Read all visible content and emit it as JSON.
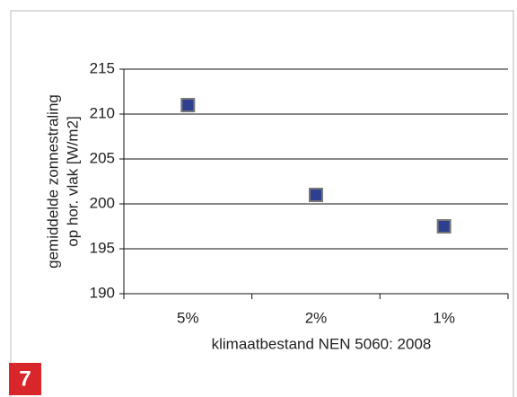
{
  "chart_data": {
    "type": "scatter",
    "y_label": [
      "gemiddelde zonnestraling",
      "op hor. vlak [W/m2]"
    ],
    "x_label": "klimaatbestand NEN 5060: 2008",
    "categories": [
      "5%",
      "2%",
      "1%"
    ],
    "values": [
      211,
      201,
      197.5
    ],
    "color": "#2f3f8f",
    "ylim": [
      190,
      215
    ],
    "yticks": [
      190,
      195,
      200,
      205,
      210,
      215
    ],
    "grid": true
  },
  "badge": "7"
}
